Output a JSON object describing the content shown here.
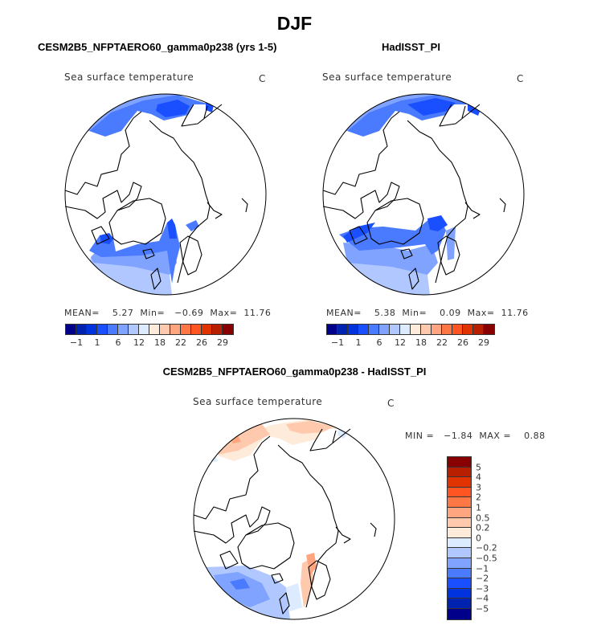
{
  "title": "DJF",
  "panels": [
    {
      "title": "CESM2B5_NFPTAERO60_gamma0p238 (yrs 1-5)",
      "variable": "Sea surface temperature",
      "units": "C",
      "mean_label": "MEAN=",
      "mean": "5.27",
      "min_label": "Min=",
      "min": "−0.69",
      "max_label": "Max=",
      "max": "11.76"
    },
    {
      "title": "HadISST_PI",
      "variable": "Sea surface temperature",
      "units": "C",
      "mean_label": "MEAN=",
      "mean": "5.38",
      "min_label": "Min=",
      "min": "0.09",
      "max_label": "Max=",
      "max": "11.76"
    },
    {
      "title": "CESM2B5_NFPTAERO60_gamma0p238 - HadISST_PI",
      "variable": "Sea surface temperature",
      "units": "C",
      "minmax": "MIN =   −1.84  MAX =    0.88"
    }
  ],
  "colorbar_abs": {
    "colors": [
      "#00008B",
      "#0022B0",
      "#0033DD",
      "#1A4FFF",
      "#4A7BFF",
      "#7FA3FF",
      "#B0C8FF",
      "#DCEBFF",
      "#FFEBD9",
      "#FFC9AE",
      "#FFA680",
      "#FF7744",
      "#FF5522",
      "#E03300",
      "#B81E00",
      "#880000"
    ],
    "labels": [
      "−1",
      "1",
      "6",
      "12",
      "18",
      "22",
      "26",
      "29"
    ]
  },
  "colorbar_diff": {
    "colors": [
      "#880000",
      "#B81E00",
      "#E03300",
      "#FF5522",
      "#FF7744",
      "#FFA680",
      "#FFC9AE",
      "#FFEBD9",
      "#DCEBFF",
      "#B0C8FF",
      "#7FA3FF",
      "#4A7BFF",
      "#1A4FFF",
      "#0033DD",
      "#0022B0",
      "#00008B"
    ],
    "labels": [
      "5",
      "4",
      "3",
      "2",
      "1",
      "0.5",
      "0.2",
      "0",
      "−0.2",
      "−0.5",
      "−1",
      "−2",
      "−3",
      "−4",
      "−5"
    ]
  }
}
